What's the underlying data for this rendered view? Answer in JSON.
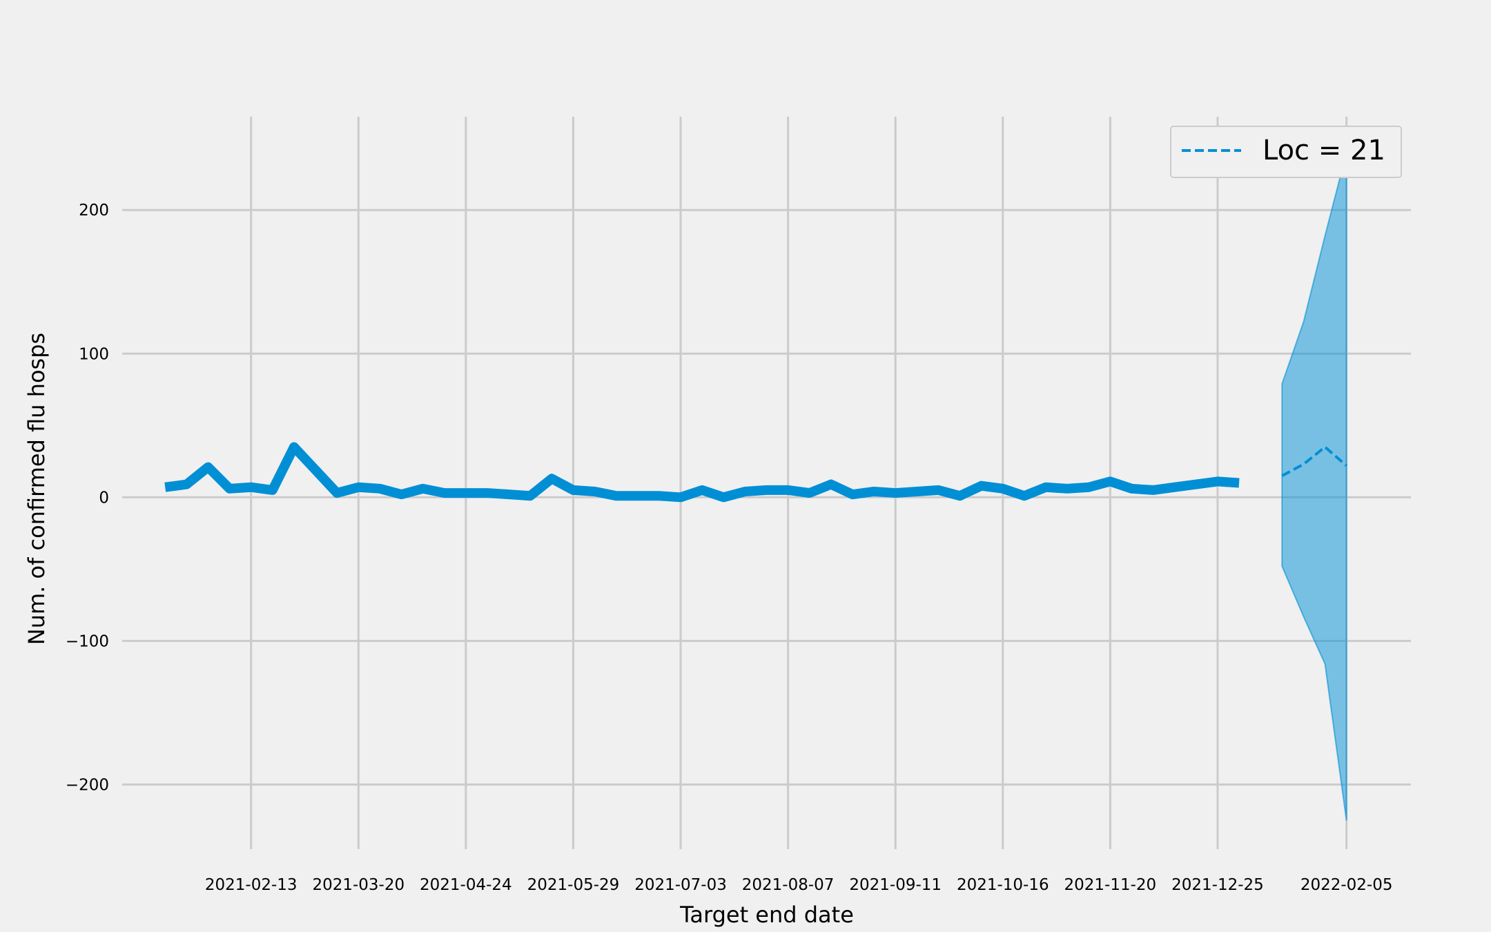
{
  "chart_data": {
    "type": "line",
    "title": "",
    "xlabel": "Target end date",
    "ylabel": "Num. of confirmed flu hosps",
    "ylim": [
      -245,
      265
    ],
    "xlim": [
      "2021-01-02",
      "2022-02-26"
    ],
    "grid": true,
    "legend_position": "top-right",
    "x_ticks": [
      "2021-02-13",
      "2021-03-20",
      "2021-04-24",
      "2021-05-29",
      "2021-07-03",
      "2021-08-07",
      "2021-09-11",
      "2021-10-16",
      "2021-11-20",
      "2021-12-25",
      "2022-02-05"
    ],
    "y_ticks": [
      -200,
      -100,
      0,
      100,
      200
    ],
    "y_tick_labels": [
      "−200",
      "−100",
      "0",
      "100",
      "200"
    ],
    "series": [
      {
        "name": "",
        "style": "solid",
        "color": "#008fd5",
        "x": [
          "2021-01-16",
          "2021-01-23",
          "2021-01-30",
          "2021-02-06",
          "2021-02-13",
          "2021-02-20",
          "2021-02-27",
          "2021-03-06",
          "2021-03-13",
          "2021-03-20",
          "2021-03-27",
          "2021-04-03",
          "2021-04-10",
          "2021-04-17",
          "2021-04-24",
          "2021-05-01",
          "2021-05-08",
          "2021-05-15",
          "2021-05-22",
          "2021-05-29",
          "2021-06-05",
          "2021-06-12",
          "2021-06-19",
          "2021-06-26",
          "2021-07-03",
          "2021-07-10",
          "2021-07-17",
          "2021-07-24",
          "2021-07-31",
          "2021-08-07",
          "2021-08-14",
          "2021-08-21",
          "2021-08-28",
          "2021-09-04",
          "2021-09-11",
          "2021-09-18",
          "2021-09-25",
          "2021-10-02",
          "2021-10-09",
          "2021-10-16",
          "2021-10-23",
          "2021-10-30",
          "2021-11-06",
          "2021-11-13",
          "2021-11-20",
          "2021-11-27",
          "2021-12-04",
          "2021-12-11",
          "2021-12-18",
          "2021-12-25",
          "2022-01-01"
        ],
        "y": [
          7,
          9,
          21,
          6,
          7,
          5,
          35,
          19,
          3,
          7,
          6,
          2,
          6,
          3,
          3,
          3,
          2,
          1,
          13,
          5,
          4,
          1,
          1,
          1,
          0,
          5,
          0,
          4,
          5,
          5,
          3,
          9,
          2,
          4,
          3,
          4,
          5,
          1,
          8,
          6,
          1,
          7,
          6,
          7,
          11,
          6,
          5,
          7,
          9,
          11,
          10
        ]
      },
      {
        "name": "Loc = 21",
        "style": "dashed",
        "color": "#008fd5",
        "x": [
          "2022-01-15",
          "2022-01-22",
          "2022-01-29",
          "2022-02-05"
        ],
        "y": [
          15,
          23,
          35,
          22
        ]
      }
    ],
    "interval": {
      "color": "#008fd5",
      "opacity": 0.5,
      "x": [
        "2022-01-15",
        "2022-01-22",
        "2022-01-29",
        "2022-02-05"
      ],
      "lower": [
        -48,
        -83,
        -116,
        -225
      ],
      "upper": [
        79,
        122,
        182,
        240
      ]
    }
  }
}
